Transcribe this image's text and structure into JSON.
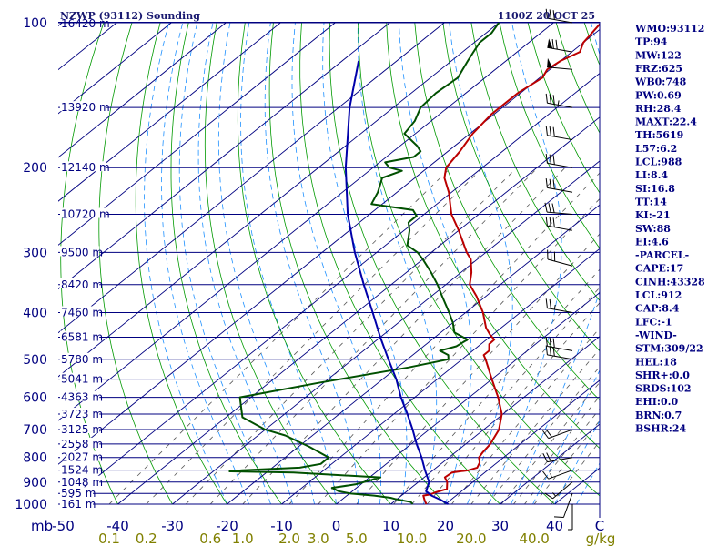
{
  "header": {
    "title": "NZWP (93112) Sounding",
    "time": "1100Z 20 OCT 25"
  },
  "colors": {
    "isobar": "#000080",
    "dry_adiabat": "#009900",
    "moist_adiabat": "#1e90ff",
    "mixing_ratio": "#555555",
    "temperature": "#bb0000",
    "dewpoint": "#005000",
    "parcel": "#0000aa",
    "wind": "#000000"
  },
  "stats": [
    "WMO:93112",
    "TP:94",
    "MW:122",
    "FRZ:625",
    "WB0:748",
    "PW:0.69",
    "RH:28.4",
    "MAXT:22.4",
    "TH:5619",
    "L57:6.2",
    "LCL:988",
    "LI:8.4",
    "SI:16.8",
    "TT:14",
    "KI:-21",
    "SW:88",
    "EI:4.6",
    "-PARCEL-",
    "CAPE:17",
    "CINH:43328",
    "LCL:912",
    "CAP:8.4",
    "LFC:-1",
    "-WIND-",
    "STM:309/22",
    "HEL:18",
    "SHR+:0.0",
    "SRDS:102",
    "EHI:0.0",
    "BRN:0.7",
    "BSHR:24"
  ],
  "chart_data": {
    "type": "line",
    "chart_kind": "skew-T log-P sounding",
    "y_scale": "log",
    "ylim": [
      1000,
      100
    ],
    "xlim": [
      -50,
      50
    ],
    "pressure_ticks": [
      "100",
      "200",
      "300",
      "400",
      "500",
      "600",
      "700",
      "800",
      "900",
      "1000"
    ],
    "pressure_tick_values": [
      100,
      200,
      300,
      400,
      500,
      600,
      700,
      800,
      900,
      1000
    ],
    "height_labels": [
      {
        "p": 100,
        "label": "16420 m"
      },
      {
        "p": 150,
        "label": "13920 m"
      },
      {
        "p": 200,
        "label": "12140 m"
      },
      {
        "p": 250,
        "label": "10720 m"
      },
      {
        "p": 300,
        "label": "9500 m"
      },
      {
        "p": 350,
        "label": "8420 m"
      },
      {
        "p": 400,
        "label": "7460 m"
      },
      {
        "p": 450,
        "label": "6581 m"
      },
      {
        "p": 500,
        "label": "5780 m"
      },
      {
        "p": 550,
        "label": "5041 m"
      },
      {
        "p": 600,
        "label": "4363 m"
      },
      {
        "p": 650,
        "label": "3723 m"
      },
      {
        "p": 700,
        "label": "3125 m"
      },
      {
        "p": 750,
        "label": "2558 m"
      },
      {
        "p": 800,
        "label": "2027 m"
      },
      {
        "p": 850,
        "label": "1524 m"
      },
      {
        "p": 900,
        "label": "1048 m"
      },
      {
        "p": 950,
        "label": "595 m"
      },
      {
        "p": 1000,
        "label": "161 m"
      }
    ],
    "x_axis_unit": "mb",
    "temperature_ticks": [
      "-50",
      "-40",
      "-30",
      "-20",
      "-10",
      "0",
      "10",
      "20",
      "30",
      "40",
      "C"
    ],
    "temperature_tick_values": [
      -50,
      -40,
      -30,
      -20,
      -10,
      0,
      10,
      20,
      30,
      40
    ],
    "mixing_ratio_ticks": [
      "0.1",
      "0.2",
      "0.6",
      "1.0",
      "2.0",
      "3.0",
      "5.0",
      "10.0",
      "20.0",
      "40.0",
      "g/kg"
    ],
    "mixing_ratio_tick_values": [
      0.1,
      0.2,
      0.6,
      1.0,
      2.0,
      3.0,
      5.0,
      10.0,
      20.0,
      40.0
    ],
    "series": [
      {
        "key": "temperature",
        "points": [
          [
            1000,
            16.5
          ],
          [
            980,
            15.2
          ],
          [
            960,
            14.0
          ],
          [
            955,
            15.0
          ],
          [
            945,
            15.5
          ],
          [
            930,
            16.8
          ],
          [
            900,
            15.3
          ],
          [
            880,
            13.8
          ],
          [
            860,
            14.0
          ],
          [
            850,
            16.5
          ],
          [
            840,
            17.5
          ],
          [
            820,
            16.8
          ],
          [
            800,
            15.5
          ],
          [
            780,
            15.0
          ],
          [
            750,
            14.5
          ],
          [
            700,
            12.8
          ],
          [
            650,
            9.8
          ],
          [
            600,
            5.3
          ],
          [
            550,
            0.0
          ],
          [
            500,
            -5.7
          ],
          [
            490,
            -7.0
          ],
          [
            480,
            -7.0
          ],
          [
            465,
            -8.5
          ],
          [
            455,
            -8.6
          ],
          [
            445,
            -10.4
          ],
          [
            430,
            -12.8
          ],
          [
            400,
            -16.8
          ],
          [
            370,
            -21.7
          ],
          [
            350,
            -25.6
          ],
          [
            330,
            -28.1
          ],
          [
            310,
            -31.2
          ],
          [
            300,
            -33.5
          ],
          [
            270,
            -40.0
          ],
          [
            250,
            -45.0
          ],
          [
            225,
            -50.5
          ],
          [
            210,
            -54.6
          ],
          [
            200,
            -56.6
          ],
          [
            185,
            -57.8
          ],
          [
            170,
            -59.5
          ],
          [
            155,
            -60.5
          ],
          [
            150,
            -60.5
          ],
          [
            140,
            -60.5
          ],
          [
            130,
            -59.5
          ],
          [
            125,
            -60.5
          ],
          [
            120,
            -60.0
          ],
          [
            115,
            -58.5
          ],
          [
            110,
            -60.0
          ],
          [
            100,
            -61.3
          ]
        ]
      },
      {
        "key": "dewpoint",
        "points": [
          [
            1000,
            14.0
          ],
          [
            990,
            13.2
          ],
          [
            975,
            9.5
          ],
          [
            970,
            8.5
          ],
          [
            960,
            5.0
          ],
          [
            950,
            0.0
          ],
          [
            940,
            -2.5
          ],
          [
            925,
            -4.5
          ],
          [
            910,
            -1.0
          ],
          [
            900,
            0.0
          ],
          [
            880,
            2.0
          ],
          [
            860,
            -15.0
          ],
          [
            855,
            -27.0
          ],
          [
            850,
            -25.0
          ],
          [
            840,
            -15.0
          ],
          [
            825,
            -12.0
          ],
          [
            800,
            -12.0
          ],
          [
            760,
            -18.0
          ],
          [
            720,
            -25.0
          ],
          [
            700,
            -30.0
          ],
          [
            660,
            -37.0
          ],
          [
            600,
            -42.0
          ],
          [
            560,
            -31.0
          ],
          [
            520,
            -18.0
          ],
          [
            500,
            -12.5
          ],
          [
            490,
            -13.5
          ],
          [
            480,
            -16.0
          ],
          [
            470,
            -14.0
          ],
          [
            455,
            -13.5
          ],
          [
            440,
            -17.5
          ],
          [
            420,
            -20.0
          ],
          [
            400,
            -23.0
          ],
          [
            370,
            -28.0
          ],
          [
            350,
            -31.5
          ],
          [
            330,
            -35.5
          ],
          [
            310,
            -40.0
          ],
          [
            300,
            -42.5
          ],
          [
            290,
            -46.0
          ],
          [
            270,
            -49.0
          ],
          [
            260,
            -51.0
          ],
          [
            252,
            -51.0
          ],
          [
            245,
            -53.0
          ],
          [
            238,
            -62.0
          ],
          [
            225,
            -63.5
          ],
          [
            210,
            -66.0
          ],
          [
            203,
            -64.0
          ],
          [
            200,
            -67.0
          ],
          [
            195,
            -69.0
          ],
          [
            190,
            -65.0
          ],
          [
            185,
            -65.0
          ],
          [
            180,
            -67.0
          ],
          [
            170,
            -72.0
          ],
          [
            160,
            -73.0
          ],
          [
            150,
            -75.0
          ],
          [
            140,
            -75.5
          ],
          [
            130,
            -75.0
          ],
          [
            120,
            -77.0
          ],
          [
            115,
            -78.0
          ],
          [
            110,
            -79.0
          ],
          [
            105,
            -79.0
          ],
          [
            100,
            -80.0
          ]
        ]
      },
      {
        "key": "parcel",
        "points": [
          [
            1000,
            20.5
          ],
          [
            980,
            18.2
          ],
          [
            960,
            15.5
          ],
          [
            940,
            13.5
          ],
          [
            900,
            12.0
          ],
          [
            850,
            8.5
          ],
          [
            800,
            5.0
          ],
          [
            750,
            1.0
          ],
          [
            700,
            -3.0
          ],
          [
            650,
            -7.5
          ],
          [
            600,
            -12.5
          ],
          [
            550,
            -17.5
          ],
          [
            500,
            -23.5
          ],
          [
            450,
            -30.0
          ],
          [
            400,
            -37.0
          ],
          [
            350,
            -45.0
          ],
          [
            300,
            -54.0
          ],
          [
            250,
            -64.0
          ],
          [
            200,
            -75.0
          ],
          [
            150,
            -88.0
          ],
          [
            120,
            -97.0
          ]
        ]
      }
    ],
    "wind_barbs": [
      {
        "p": 100,
        "dir": 280,
        "speed": 30
      },
      {
        "p": 115,
        "dir": 280,
        "speed": 70
      },
      {
        "p": 125,
        "dir": 275,
        "speed": 50
      },
      {
        "p": 150,
        "dir": 280,
        "speed": 35
      },
      {
        "p": 175,
        "dir": 280,
        "speed": 30
      },
      {
        "p": 200,
        "dir": 280,
        "speed": 30
      },
      {
        "p": 225,
        "dir": 280,
        "speed": 30
      },
      {
        "p": 250,
        "dir": 275,
        "speed": 30
      },
      {
        "p": 270,
        "dir": 280,
        "speed": 30
      },
      {
        "p": 320,
        "dir": 285,
        "speed": 30
      },
      {
        "p": 400,
        "dir": 280,
        "speed": 25
      },
      {
        "p": 480,
        "dir": 280,
        "speed": 30
      },
      {
        "p": 500,
        "dir": 280,
        "speed": 30
      },
      {
        "p": 700,
        "dir": 250,
        "speed": 20
      },
      {
        "p": 800,
        "dir": 260,
        "speed": 20
      },
      {
        "p": 850,
        "dir": 250,
        "speed": 15
      },
      {
        "p": 900,
        "dir": 230,
        "speed": 15
      },
      {
        "p": 950,
        "dir": 200,
        "speed": 10
      },
      {
        "p": 1000,
        "dir": 180,
        "speed": 5
      }
    ]
  }
}
